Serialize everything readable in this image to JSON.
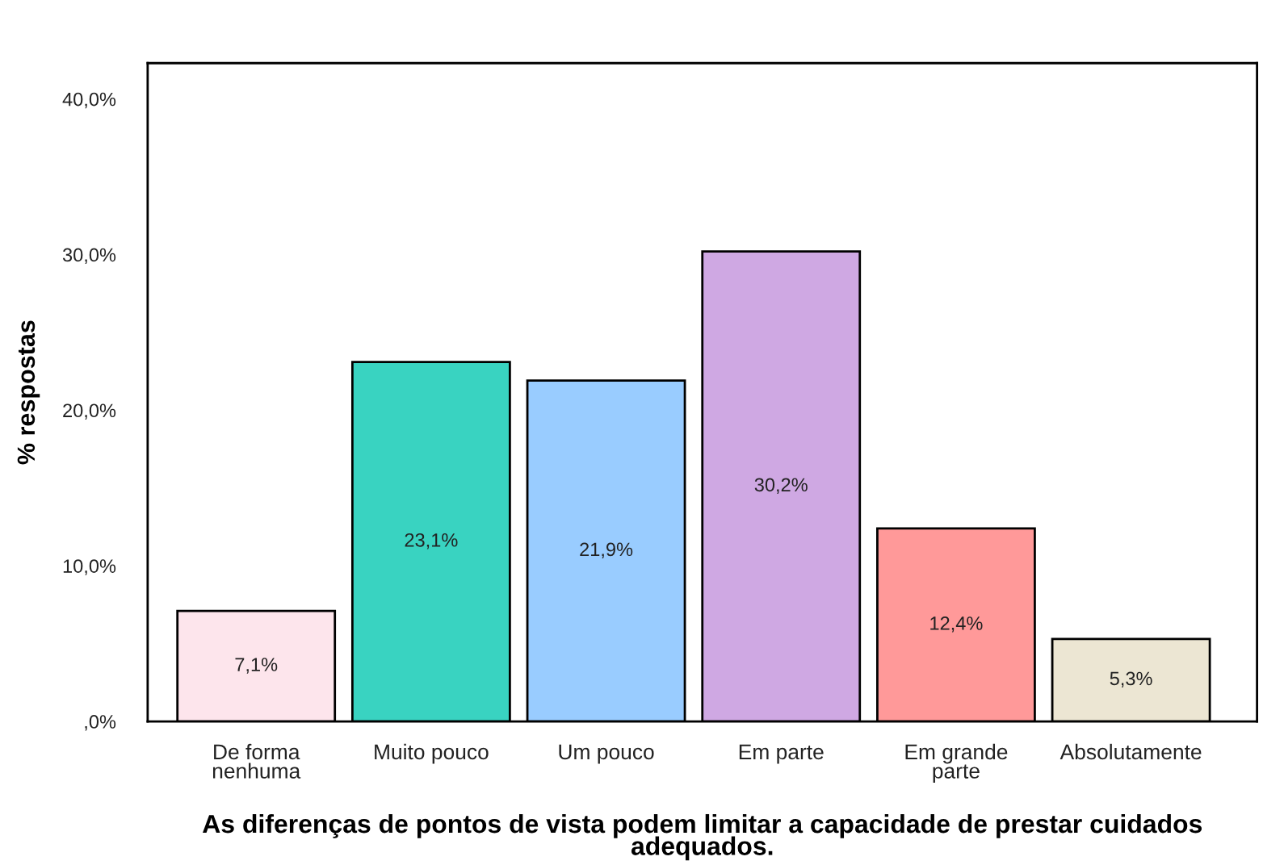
{
  "chart_data": {
    "type": "bar",
    "xlabel": "As diferenças de pontos de vista podem limitar a capacidade de prestar cuidados\nadequados.",
    "ylabel": "% respostas",
    "categories": [
      "De forma\nnenhuma",
      "Muito pouco",
      "Um pouco",
      "Em parte",
      "Em grande\nparte",
      "Absolutamente"
    ],
    "values": [
      7.1,
      23.1,
      21.9,
      30.2,
      12.4,
      5.3
    ],
    "value_labels": [
      "7,1%",
      "23,1%",
      "21,9%",
      "30,2%",
      "12,4%",
      "5,3%"
    ],
    "colors": [
      "#fde5ec",
      "#39d3c1",
      "#99ccff",
      "#cfa8e3",
      "#ff9999",
      "#ece6d3"
    ],
    "ylim": [
      0,
      42.3
    ],
    "yticks": [
      {
        "value": 0,
        "label": ",0%"
      },
      {
        "value": 10,
        "label": "10,0%"
      },
      {
        "value": 20,
        "label": "20,0%"
      },
      {
        "value": 30,
        "label": "30,0%"
      },
      {
        "value": 40,
        "label": "40,0%"
      }
    ]
  }
}
